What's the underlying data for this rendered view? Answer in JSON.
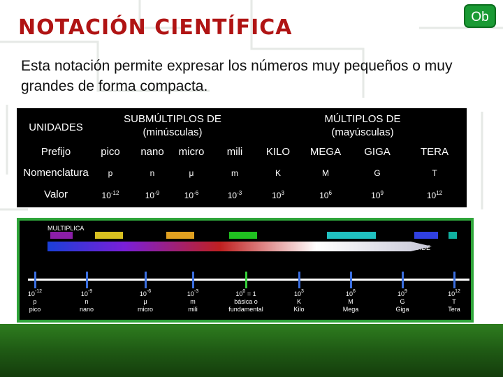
{
  "title": "NOTACIÓN CIENTÍFICA",
  "logo": "Ob",
  "intro": "Esta notación permite expresar los números muy pequeños o muy grandes de forma compacta.",
  "table": {
    "units_label": "UNIDADES",
    "sub_header": "SUBMÚLTIPLOS DE\n(minúsculas)",
    "mult_header": "MÚLTIPLOS DE\n(mayúsculas)",
    "rows": {
      "prefix_label": "Prefijo",
      "nom_label": "Nomenclatura",
      "val_label": "Valor"
    },
    "columns": [
      {
        "prefix": "pico",
        "nom": "p",
        "base": "10",
        "exp": "-12"
      },
      {
        "prefix": "nano",
        "nom": "n",
        "base": "10",
        "exp": "-9"
      },
      {
        "prefix": "micro",
        "nom": "μ",
        "base": "10",
        "exp": "-6"
      },
      {
        "prefix": "mili",
        "nom": "m",
        "base": "10",
        "exp": "-3"
      },
      {
        "prefix": "KILO",
        "nom": "K",
        "base": "10",
        "exp": "3"
      },
      {
        "prefix": "MEGA",
        "nom": "M",
        "base": "10",
        "exp": "6"
      },
      {
        "prefix": "GIGA",
        "nom": "G",
        "base": "10",
        "exp": "9"
      },
      {
        "prefix": "TERA",
        "nom": "T",
        "base": "10",
        "exp": "12"
      }
    ]
  },
  "scale": {
    "multiplica": "MULTIPLICA",
    "divide": "DIVIDE",
    "ticks": [
      {
        "l1": "10",
        "exp": "-12",
        "l2": "p",
        "l3": "pico",
        "color": "#3b6fe0"
      },
      {
        "l1": "10",
        "exp": "-9",
        "l2": "n",
        "l3": "nano",
        "color": "#3b6fe0"
      },
      {
        "l1": "10",
        "exp": "-6",
        "l2": "μ",
        "l3": "micro",
        "color": "#3b6fe0"
      },
      {
        "l1": "10",
        "exp": "-3",
        "l2": "m",
        "l3": "mili",
        "color": "#3b6fe0"
      },
      {
        "l1": "10",
        "exp": "0",
        "suffix": " = 1",
        "l2": "básica o",
        "l3": "fundamental",
        "color": "#35d03a"
      },
      {
        "l1": "10",
        "exp": "3",
        "l2": "K",
        "l3": "Kilo",
        "color": "#3b6fe0"
      },
      {
        "l1": "10",
        "exp": "6",
        "l2": "M",
        "l3": "Mega",
        "color": "#3b6fe0"
      },
      {
        "l1": "10",
        "exp": "9",
        "l2": "G",
        "l3": "Giga",
        "color": "#3b6fe0"
      },
      {
        "l1": "10",
        "exp": "12",
        "l2": "T",
        "l3": "Tera",
        "color": "#3b6fe0"
      }
    ]
  }
}
